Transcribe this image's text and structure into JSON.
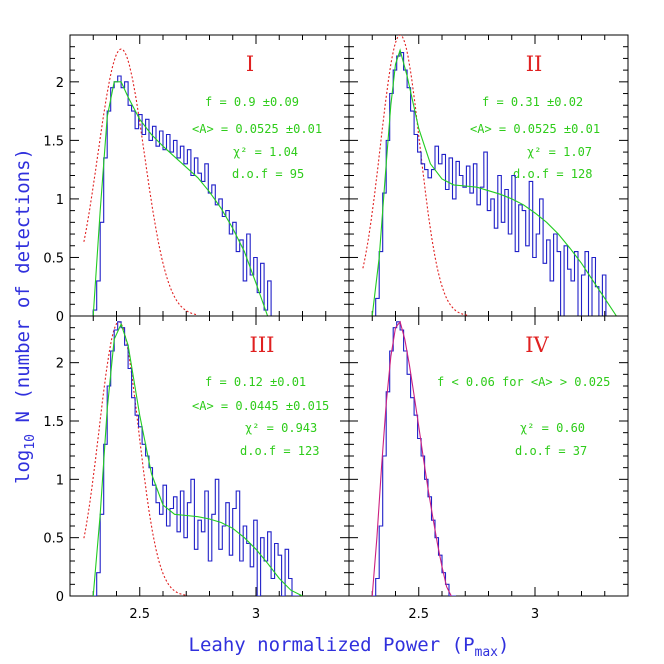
{
  "chart_data": {
    "type": "line",
    "xlabel": "Leahy normalized Power (P",
    "xlabel_sub": "max",
    "xlabel_end": ")",
    "ylabel_prefix": "log",
    "ylabel_sub": "10",
    "ylabel_rest": " N (number of detections)",
    "xlim": [
      2.2,
      3.4
    ],
    "ylim": [
      0,
      2.4
    ],
    "x_ticks": [
      "2.5",
      "3"
    ],
    "y_ticks": [
      "0",
      "0.5",
      "1",
      "1.5",
      "2"
    ],
    "colors": {
      "histogram": "#2020c8",
      "fit": "#22cc22",
      "gaussian": "#e02020",
      "iv_fit": "#cc2080"
    },
    "panels": [
      {
        "label": "I",
        "annotations": [
          "f = 0.9 ±0.09",
          "<A> = 0.0525 ±0.01",
          "χ² = 1.04",
          "d.o.f = 95"
        ],
        "hist_x": [
          2.3,
          2.315,
          2.33,
          2.345,
          2.36,
          2.375,
          2.39,
          2.405,
          2.42,
          2.435,
          2.45,
          2.465,
          2.48,
          2.495,
          2.51,
          2.525,
          2.54,
          2.555,
          2.57,
          2.585,
          2.6,
          2.615,
          2.63,
          2.645,
          2.66,
          2.675,
          2.69,
          2.705,
          2.72,
          2.735,
          2.75,
          2.765,
          2.78,
          2.795,
          2.81,
          2.825,
          2.84,
          2.855,
          2.87,
          2.885,
          2.9,
          2.915,
          2.93,
          2.945,
          2.96,
          2.975,
          2.99,
          3.005,
          3.02,
          3.035,
          3.05,
          3.065
        ],
        "hist_y": [
          0.05,
          0.3,
          0.8,
          1.35,
          1.75,
          1.95,
          2.0,
          2.05,
          1.95,
          2.0,
          1.8,
          1.75,
          1.6,
          1.72,
          1.55,
          1.68,
          1.5,
          1.62,
          1.45,
          1.58,
          1.42,
          1.55,
          1.4,
          1.5,
          1.35,
          1.45,
          1.3,
          1.42,
          1.2,
          1.35,
          1.22,
          1.15,
          1.3,
          1.05,
          1.12,
          0.95,
          1.0,
          0.85,
          0.9,
          0.7,
          0.8,
          0.55,
          0.65,
          0.3,
          0.7,
          0.35,
          0.5,
          0.2,
          0.45,
          0.05,
          0.3,
          0.0
        ],
        "fit_x": [
          2.3,
          2.33,
          2.36,
          2.39,
          2.42,
          2.45,
          2.5,
          2.55,
          2.6,
          2.65,
          2.7,
          2.75,
          2.8,
          2.85,
          2.9,
          2.95,
          3.0,
          3.05
        ],
        "fit_y": [
          0.0,
          0.9,
          1.7,
          2.0,
          2.0,
          1.87,
          1.68,
          1.55,
          1.45,
          1.36,
          1.27,
          1.18,
          1.06,
          0.92,
          0.75,
          0.55,
          0.28,
          0.0
        ],
        "gauss_mean": 2.42,
        "gauss_peak": 2.28,
        "gauss_sigma": 0.1
      },
      {
        "label": "II",
        "annotations": [
          "f = 0.31 ±0.02",
          "<A> = 0.0525 ±0.01",
          "χ² = 1.07",
          "d.o.f = 128"
        ],
        "hist_x": [
          2.3,
          2.315,
          2.33,
          2.345,
          2.36,
          2.375,
          2.39,
          2.405,
          2.42,
          2.435,
          2.45,
          2.465,
          2.48,
          2.495,
          2.51,
          2.525,
          2.54,
          2.555,
          2.57,
          2.585,
          2.6,
          2.615,
          2.63,
          2.645,
          2.66,
          2.675,
          2.69,
          2.705,
          2.72,
          2.735,
          2.75,
          2.765,
          2.78,
          2.795,
          2.81,
          2.825,
          2.84,
          2.855,
          2.87,
          2.885,
          2.9,
          2.915,
          2.93,
          2.945,
          2.96,
          2.975,
          2.99,
          3.005,
          3.02,
          3.035,
          3.05,
          3.065,
          3.08,
          3.095,
          3.11,
          3.125,
          3.14,
          3.155,
          3.17,
          3.185,
          3.2,
          3.215,
          3.23,
          3.245,
          3.26,
          3.275,
          3.29,
          3.305,
          3.32,
          3.335,
          3.35
        ],
        "hist_y": [
          0.0,
          0.15,
          0.55,
          1.05,
          1.5,
          1.9,
          2.1,
          2.22,
          2.25,
          2.1,
          1.95,
          1.75,
          1.55,
          1.4,
          1.3,
          1.25,
          1.18,
          1.25,
          1.45,
          1.3,
          1.38,
          1.08,
          1.35,
          1.0,
          1.32,
          1.2,
          1.1,
          1.28,
          1.05,
          1.3,
          0.95,
          1.1,
          1.4,
          0.9,
          1.0,
          0.75,
          1.2,
          0.8,
          1.08,
          0.7,
          1.2,
          0.55,
          0.95,
          0.9,
          0.6,
          1.15,
          0.5,
          0.7,
          1.0,
          0.45,
          0.65,
          0.3,
          0.7,
          0.55,
          0.0,
          0.6,
          0.4,
          0.3,
          0.55,
          0.0,
          0.35,
          0.55,
          0.0,
          0.5,
          0.25,
          0.0,
          0.35,
          0.0,
          0.0,
          0.0,
          0.0
        ],
        "fit_x": [
          2.3,
          2.33,
          2.36,
          2.38,
          2.4,
          2.42,
          2.45,
          2.5,
          2.55,
          2.6,
          2.65,
          2.7,
          2.75,
          2.8,
          2.85,
          2.9,
          2.95,
          3.0,
          3.05,
          3.1,
          3.15,
          3.2,
          3.25,
          3.3,
          3.35
        ],
        "fit_y": [
          0.0,
          0.5,
          1.3,
          1.8,
          2.15,
          2.27,
          2.05,
          1.6,
          1.3,
          1.17,
          1.12,
          1.11,
          1.1,
          1.07,
          1.04,
          1.0,
          0.95,
          0.88,
          0.8,
          0.7,
          0.58,
          0.45,
          0.3,
          0.15,
          0.0
        ],
        "gauss_mean": 2.42,
        "gauss_peak": 2.4,
        "gauss_sigma": 0.085
      },
      {
        "label": "III",
        "annotations": [
          "f = 0.12 ±0.01",
          "<A> = 0.0445 ±0.015",
          "χ² = 0.943",
          "d.o.f = 123"
        ],
        "hist_x": [
          2.3,
          2.315,
          2.33,
          2.345,
          2.36,
          2.375,
          2.39,
          2.405,
          2.42,
          2.435,
          2.45,
          2.465,
          2.48,
          2.495,
          2.51,
          2.525,
          2.54,
          2.555,
          2.57,
          2.585,
          2.6,
          2.615,
          2.63,
          2.645,
          2.66,
          2.675,
          2.69,
          2.705,
          2.72,
          2.735,
          2.75,
          2.765,
          2.78,
          2.795,
          2.81,
          2.825,
          2.84,
          2.855,
          2.87,
          2.885,
          2.9,
          2.915,
          2.93,
          2.945,
          2.96,
          2.975,
          2.99,
          3.005,
          3.02,
          3.035,
          3.05,
          3.065,
          3.08,
          3.095,
          3.11,
          3.125,
          3.14,
          3.155,
          3.17
        ],
        "hist_y": [
          0.0,
          0.2,
          0.7,
          1.3,
          1.8,
          2.1,
          2.28,
          2.35,
          2.3,
          2.15,
          1.95,
          1.7,
          1.55,
          1.45,
          1.3,
          1.2,
          1.1,
          0.95,
          0.8,
          0.7,
          0.95,
          0.6,
          0.75,
          0.85,
          0.55,
          0.9,
          0.5,
          0.8,
          1.0,
          0.4,
          0.65,
          0.55,
          0.9,
          0.3,
          0.7,
          1.0,
          0.4,
          0.6,
          0.8,
          0.35,
          0.75,
          0.9,
          0.3,
          0.6,
          0.45,
          0.25,
          0.65,
          0.0,
          0.5,
          0.3,
          0.55,
          0.15,
          0.45,
          0.35,
          0.0,
          0.4,
          0.15,
          0.0,
          0.0
        ],
        "fit_x": [
          2.3,
          2.33,
          2.36,
          2.39,
          2.42,
          2.45,
          2.5,
          2.55,
          2.6,
          2.65,
          2.7,
          2.75,
          2.8,
          2.85,
          2.9,
          2.95,
          3.0,
          3.05,
          3.1,
          3.15,
          3.2
        ],
        "fit_y": [
          0.0,
          0.7,
          1.6,
          2.2,
          2.33,
          2.15,
          1.55,
          1.05,
          0.78,
          0.7,
          0.69,
          0.68,
          0.66,
          0.63,
          0.58,
          0.5,
          0.4,
          0.28,
          0.15,
          0.05,
          0.0
        ],
        "gauss_mean": 2.41,
        "gauss_peak": 2.35,
        "gauss_sigma": 0.085
      },
      {
        "label": "IV",
        "annotations": [
          "f < 0.06 for <A> > 0.025",
          "χ² = 0.60",
          "d.o.f = 37"
        ],
        "hist_x": [
          2.3,
          2.315,
          2.33,
          2.345,
          2.36,
          2.375,
          2.39,
          2.405,
          2.42,
          2.435,
          2.45,
          2.465,
          2.48,
          2.495,
          2.51,
          2.525,
          2.54,
          2.555,
          2.57,
          2.585,
          2.6,
          2.615,
          2.63,
          2.645
        ],
        "hist_y": [
          0.0,
          0.15,
          0.6,
          1.2,
          1.75,
          2.1,
          2.3,
          2.35,
          2.28,
          2.1,
          1.9,
          1.7,
          1.55,
          1.35,
          1.2,
          1.0,
          0.85,
          0.65,
          0.5,
          0.35,
          0.2,
          0.1,
          0.0,
          0.0
        ],
        "fit_x": [
          2.3,
          2.32,
          2.34,
          2.36,
          2.38,
          2.4,
          2.42,
          2.44,
          2.46,
          2.48,
          2.5,
          2.52,
          2.54,
          2.56,
          2.58,
          2.6,
          2.62,
          2.64
        ],
        "fit_y": [
          0.0,
          0.5,
          1.1,
          1.65,
          2.05,
          2.3,
          2.35,
          2.2,
          1.98,
          1.72,
          1.45,
          1.18,
          0.92,
          0.68,
          0.45,
          0.25,
          0.08,
          0.0
        ]
      }
    ]
  }
}
